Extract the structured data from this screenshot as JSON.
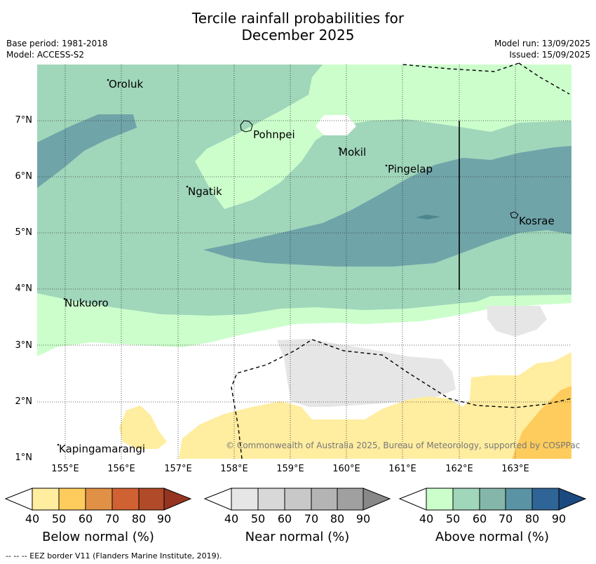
{
  "title": "Tercile rainfall probabilities for\nDecember 2025",
  "title_line1": "Tercile rainfall probabilities for",
  "title_line2": "December 2025",
  "base_period": "Base period: 1981-2018",
  "model": "Model: ACCESS-S2",
  "model_run": "Model run: 13/09/2025",
  "issued": "Issued: 15/09/2025",
  "lat_ticks": [
    "1°N",
    "2°N",
    "3°N",
    "4°N",
    "5°N",
    "6°N",
    "7°N"
  ],
  "lon_ticks": [
    "155°E",
    "156°E",
    "157°E",
    "158°E",
    "159°E",
    "160°E",
    "161°E",
    "162°E",
    "163°E"
  ],
  "places": [
    "Oroluk",
    "Pohnpei",
    "Mokil",
    "Pingelap",
    "Ngatik",
    "Kosrae",
    "Nukuoro",
    "Kapingamarangi"
  ],
  "copyright": "© Commonwealth of Australia 2025, Bureau of Meteorology, supported by COSPPac",
  "colorbars": [
    {
      "title": "Below normal (%)",
      "colors": [
        "#ffeda0",
        "#fecc5c",
        "#e09146",
        "#cf6133",
        "#b04a29",
        "#963422"
      ],
      "ticks": [
        "40",
        "50",
        "60",
        "70",
        "80",
        "90"
      ]
    },
    {
      "title": "Near normal (%)",
      "colors": [
        "#e6e6e6",
        "#d8d8d8",
        "#c8c8c8",
        "#b4b4b4",
        "#a0a0a0",
        "#888888"
      ],
      "ticks": [
        "40",
        "50",
        "60",
        "70",
        "80",
        "90"
      ]
    },
    {
      "title": "Above normal (%)",
      "colors": [
        "#ccfecc",
        "#a0d6ba",
        "#85b6aa",
        "#5a93a3",
        "#2f6596",
        "#1a4a80"
      ],
      "ticks": [
        "40",
        "50",
        "60",
        "70",
        "80",
        "90"
      ]
    }
  ],
  "footnote": "--  --  -- EEZ border V11 (Flanders Marine Institute, 2019)."
}
